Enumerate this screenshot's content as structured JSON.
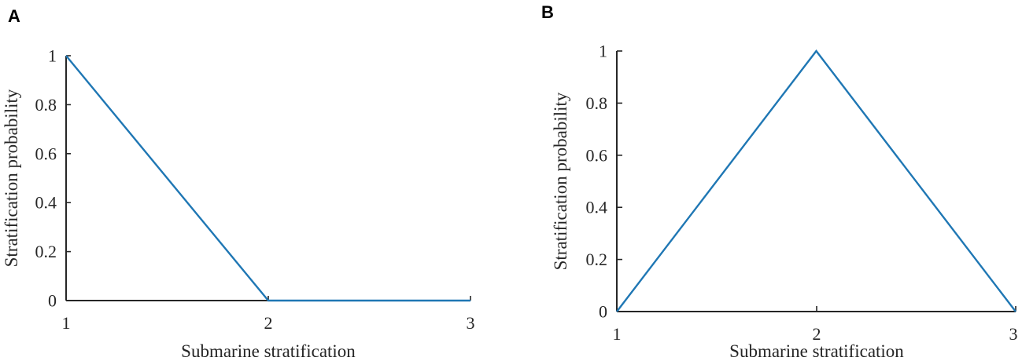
{
  "chart_data": [
    {
      "panel_label": "A",
      "type": "line",
      "x": [
        1,
        2,
        3
      ],
      "series": [
        {
          "values": [
            1,
            0,
            0
          ],
          "color": "#1f77b4"
        }
      ],
      "xlabel": "Submarine stratification",
      "ylabel": "Stratification probability",
      "xlim": [
        1,
        3
      ],
      "ylim": [
        0,
        1
      ],
      "xticks": [
        "1",
        "2",
        "3"
      ],
      "yticks": [
        "0",
        "0.2",
        "0.4",
        "0.6",
        "0.8",
        "1"
      ],
      "grid": false
    },
    {
      "panel_label": "B",
      "type": "line",
      "x": [
        1,
        2,
        3
      ],
      "series": [
        {
          "values": [
            0,
            1,
            0
          ],
          "color": "#1f77b4"
        }
      ],
      "xlabel": "Submarine stratification",
      "ylabel": "Stratification probability",
      "xlim": [
        1,
        3
      ],
      "ylim": [
        0,
        1
      ],
      "xticks": [
        "1",
        "2",
        "3"
      ],
      "yticks": [
        "0",
        "0.2",
        "0.4",
        "0.6",
        "0.8",
        "1"
      ],
      "grid": false
    }
  ]
}
